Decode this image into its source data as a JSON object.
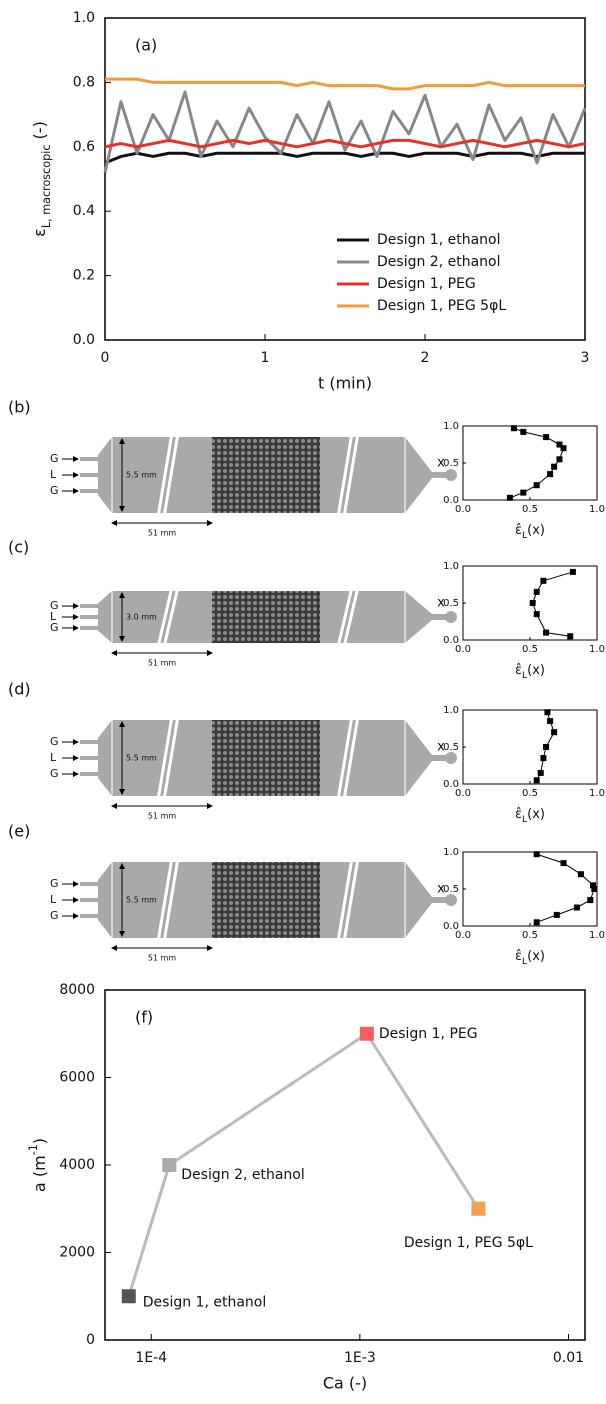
{
  "chart_data": [
    {
      "type": "line",
      "annotation": "(a)",
      "xlabel": "t (min)",
      "ylabel": [
        "ε",
        "L, macroscopic",
        " (-)"
      ],
      "x": [
        0,
        0.1,
        0.2,
        0.3,
        0.4,
        0.5,
        0.6,
        0.7,
        0.8,
        0.9,
        1,
        1.1,
        1.2,
        1.3,
        1.4,
        1.5,
        1.6,
        1.7,
        1.8,
        1.9,
        2,
        2.1,
        2.2,
        2.3,
        2.4,
        2.5,
        2.6,
        2.7,
        2.8,
        2.9,
        3
      ],
      "series": [
        {
          "name": "Design 1, ethanol",
          "color": "#111111",
          "values": [
            0.55,
            0.57,
            0.58,
            0.57,
            0.58,
            0.58,
            0.57,
            0.58,
            0.58,
            0.58,
            0.58,
            0.58,
            0.57,
            0.58,
            0.58,
            0.58,
            0.57,
            0.58,
            0.58,
            0.57,
            0.58,
            0.58,
            0.58,
            0.57,
            0.58,
            0.58,
            0.58,
            0.57,
            0.58,
            0.58,
            0.58
          ]
        },
        {
          "name": "Design 2, ethanol",
          "color": "#888888",
          "values": [
            0.52,
            0.74,
            0.58,
            0.7,
            0.62,
            0.77,
            0.57,
            0.68,
            0.6,
            0.72,
            0.63,
            0.58,
            0.7,
            0.61,
            0.74,
            0.59,
            0.68,
            0.57,
            0.71,
            0.64,
            0.76,
            0.6,
            0.67,
            0.56,
            0.73,
            0.62,
            0.69,
            0.55,
            0.7,
            0.6,
            0.72
          ]
        },
        {
          "name": "Design 1, PEG",
          "color": "#e8302a",
          "values": [
            0.6,
            0.61,
            0.6,
            0.61,
            0.62,
            0.61,
            0.6,
            0.61,
            0.62,
            0.61,
            0.62,
            0.61,
            0.6,
            0.61,
            0.62,
            0.61,
            0.6,
            0.61,
            0.62,
            0.62,
            0.61,
            0.6,
            0.61,
            0.62,
            0.61,
            0.6,
            0.61,
            0.62,
            0.61,
            0.6,
            0.61
          ]
        },
        {
          "name": "Design 1, PEG 5φL",
          "color": "#f39a3c",
          "values": [
            0.81,
            0.81,
            0.81,
            0.8,
            0.8,
            0.8,
            0.8,
            0.8,
            0.8,
            0.8,
            0.8,
            0.8,
            0.79,
            0.8,
            0.79,
            0.79,
            0.79,
            0.79,
            0.78,
            0.78,
            0.79,
            0.79,
            0.79,
            0.79,
            0.8,
            0.79,
            0.79,
            0.79,
            0.79,
            0.79,
            0.79
          ]
        }
      ],
      "xlim": [
        0,
        3
      ],
      "xticks": [
        0,
        1,
        2,
        3
      ],
      "ylim": [
        0,
        1
      ],
      "yticks": [
        {
          "value": 0,
          "label": "0.0"
        },
        0.2,
        0.4,
        0.6,
        0.8,
        {
          "value": 1,
          "label": "1.0"
        }
      ],
      "legend": "lower right"
    },
    {
      "type": "line",
      "xlabel": [
        "ε̂",
        "L",
        "(x)"
      ],
      "ylabel": "x",
      "color": "#000000",
      "x": [
        0.35,
        0.45,
        0.55,
        0.65,
        0.68,
        0.72,
        0.75,
        0.72,
        0.62,
        0.45,
        0.38
      ],
      "values": [
        0.03,
        0.1,
        0.2,
        0.35,
        0.45,
        0.55,
        0.7,
        0.75,
        0.85,
        0.92,
        0.97
      ],
      "xlim": [
        0,
        1
      ],
      "xticks": [
        {
          "value": 0,
          "label": "0.0"
        },
        0.5,
        {
          "value": 1,
          "label": "1.0"
        }
      ],
      "ylim": [
        0,
        1
      ],
      "yticks": [
        {
          "value": 0,
          "label": "0.0"
        },
        0.5,
        {
          "value": 1,
          "label": "1.0"
        }
      ]
    },
    {
      "type": "line",
      "xlabel": [
        "ε̂",
        "L",
        "(x)"
      ],
      "ylabel": "x",
      "color": "#000000",
      "x": [
        0.8,
        0.62,
        0.55,
        0.52,
        0.55,
        0.6,
        0.82
      ],
      "values": [
        0.05,
        0.1,
        0.35,
        0.5,
        0.65,
        0.8,
        0.92
      ],
      "xlim": [
        0,
        1
      ],
      "xticks": [
        {
          "value": 0,
          "label": "0.0"
        },
        0.5,
        {
          "value": 1,
          "label": "1.0"
        }
      ],
      "ylim": [
        0,
        1
      ],
      "yticks": [
        {
          "value": 0,
          "label": "0.0"
        },
        0.5,
        {
          "value": 1,
          "label": "1.0"
        }
      ]
    },
    {
      "type": "line",
      "xlabel": [
        "ε̂",
        "L",
        "(x)"
      ],
      "ylabel": "x",
      "color": "#000000",
      "x": [
        0.55,
        0.58,
        0.6,
        0.62,
        0.68,
        0.65,
        0.63
      ],
      "values": [
        0.05,
        0.15,
        0.35,
        0.5,
        0.7,
        0.85,
        0.97
      ],
      "xlim": [
        0,
        1
      ],
      "xticks": [
        {
          "value": 0,
          "label": "0.0"
        },
        0.5,
        {
          "value": 1,
          "label": "1.0"
        }
      ],
      "ylim": [
        0,
        1
      ],
      "yticks": [
        {
          "value": 0,
          "label": "0.0"
        },
        0.5,
        {
          "value": 1,
          "label": "1.0"
        }
      ]
    },
    {
      "type": "line",
      "xlabel": [
        "ε̂",
        "L",
        "(x)"
      ],
      "ylabel": "x",
      "color": "#000000",
      "x": [
        0.55,
        0.7,
        0.85,
        0.95,
        0.98,
        0.97,
        0.88,
        0.75,
        0.55
      ],
      "values": [
        0.05,
        0.15,
        0.25,
        0.35,
        0.5,
        0.55,
        0.7,
        0.85,
        0.97
      ],
      "xlim": [
        0,
        1
      ],
      "xticks": [
        {
          "value": 0,
          "label": "0.0"
        },
        0.5,
        {
          "value": 1,
          "label": "1.0"
        }
      ],
      "ylim": [
        0,
        1
      ],
      "yticks": [
        {
          "value": 0,
          "label": "0.0"
        },
        0.5,
        {
          "value": 1,
          "label": "1.0"
        }
      ]
    },
    {
      "type": "line",
      "annotation": "(f)",
      "xlabel": "Ca (-)",
      "ylabel": [
        "a (m",
        "-1",
        ")"
      ],
      "xlog": true,
      "color": "#bbbbbb",
      "x": [
        7.8e-05,
        0.000122,
        0.00108,
        0.0037
      ],
      "values": [
        1000,
        4000,
        7000,
        3000
      ],
      "point_labels": [
        "Design 1, ethanol",
        "Design 2, ethanol",
        "Design 1, PEG",
        "Design 1, PEG 5φL"
      ],
      "marker_colors": [
        "#555555",
        "#aaaaaa",
        "#f06060",
        "#f5a050"
      ],
      "label_colors": [
        "#111111",
        "#999999",
        "#e8302a",
        "#f39a3c"
      ],
      "xlim": [
        6e-05,
        0.012
      ],
      "xticks": [
        {
          "value": 0.0001,
          "label": "1E-4"
        },
        {
          "value": 0.001,
          "label": "1E-3"
        },
        0.01
      ],
      "ylim": [
        0,
        8000
      ],
      "yticks": [
        0,
        2000,
        4000,
        6000,
        8000
      ]
    }
  ],
  "diagrams": [
    {
      "panel": "(b)",
      "inlets": [
        "G",
        "L",
        "G"
      ],
      "width_label": "5.5 mm",
      "length_label": "51 mm"
    },
    {
      "panel": "(c)",
      "inlets": [
        "G",
        "L",
        "G"
      ],
      "width_label": "3.0 mm",
      "length_label": "51 mm"
    },
    {
      "panel": "(d)",
      "inlets": [
        "G",
        "L",
        "G"
      ],
      "width_label": "5.5 mm",
      "length_label": "51 mm"
    },
    {
      "panel": "(e)",
      "inlets": [
        "G",
        "L",
        "G"
      ],
      "width_label": "5.5 mm",
      "length_label": "51 mm"
    }
  ]
}
